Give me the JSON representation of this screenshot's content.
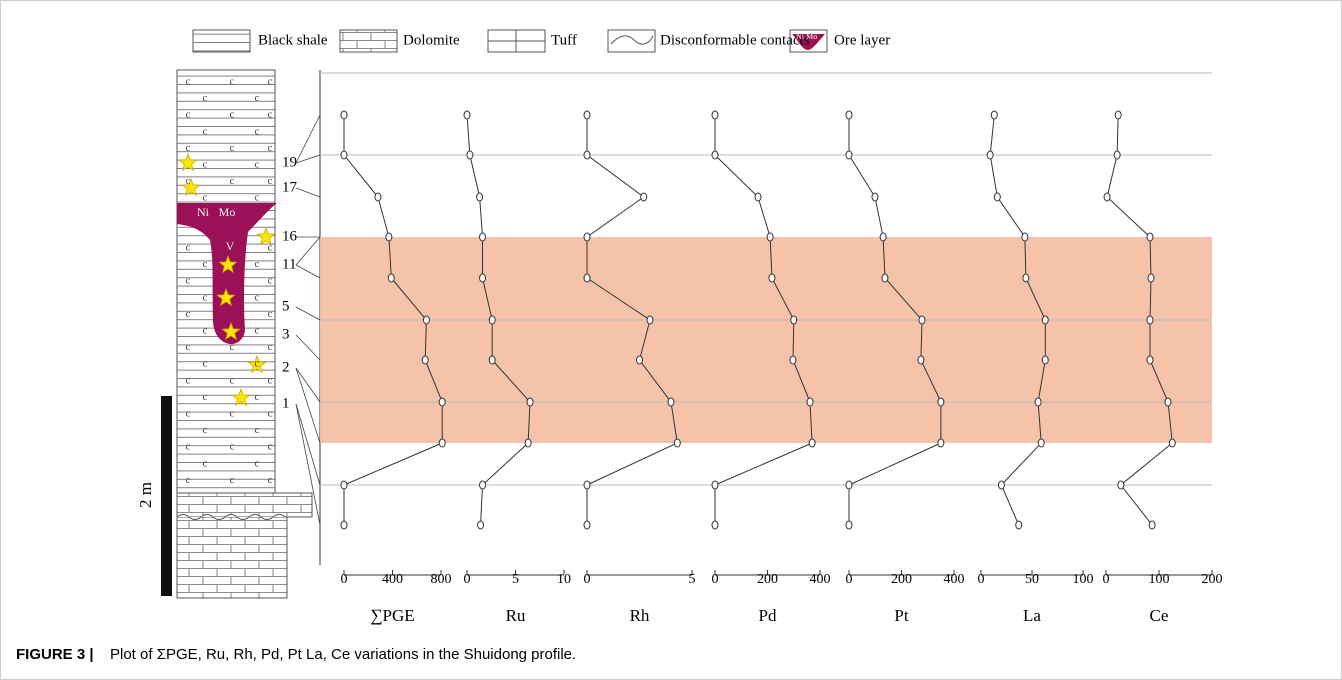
{
  "legend": {
    "items": [
      "Black shale",
      "Dolomite",
      "Tuff",
      "Disconformable contacts",
      "Ore layer"
    ],
    "ore_icon_text": "Ni Mo"
  },
  "column": {
    "shale_symbol": "c",
    "ore_elements": [
      "Ni",
      "Mo",
      "V"
    ],
    "sample_labels": [
      "19",
      "17",
      "16",
      "11",
      "5",
      "3",
      "2",
      "1"
    ],
    "scale_label": "2 m"
  },
  "chart_data": {
    "type": "line",
    "orientation": "vertical",
    "color": "#333333",
    "highlight_color": "#f4c0a4",
    "series": [
      {
        "name": "∑PGE",
        "values": [
          0,
          0,
          280,
          370,
          390,
          680,
          670,
          810,
          810,
          0,
          0
        ],
        "xlim": [
          0,
          800
        ],
        "xticks": [
          0,
          400,
          800
        ]
      },
      {
        "name": "Ru",
        "values": [
          0,
          0.3,
          1.3,
          1.6,
          1.6,
          2.6,
          2.6,
          6.5,
          6.3,
          1.6,
          1.4
        ],
        "xlim": [
          0,
          10
        ],
        "xticks": [
          0,
          5,
          10
        ]
      },
      {
        "name": "Rh",
        "values": [
          0,
          0,
          2.7,
          0,
          0,
          3.0,
          2.5,
          4.0,
          4.3,
          0,
          0
        ],
        "xlim": [
          0,
          5
        ],
        "xticks": [
          0,
          5
        ]
      },
      {
        "name": "Pd",
        "values": [
          0,
          0,
          164,
          210,
          217,
          300,
          297,
          362,
          370,
          0,
          0
        ],
        "xlim": [
          0,
          400
        ],
        "xticks": [
          0,
          200,
          400
        ]
      },
      {
        "name": "Pt",
        "values": [
          0,
          0,
          99,
          130,
          137,
          278,
          274,
          350,
          350,
          0,
          0
        ],
        "xlim": [
          0,
          400
        ],
        "xticks": [
          0,
          200,
          400
        ]
      },
      {
        "name": "La",
        "values": [
          13,
          9,
          16,
          43,
          44,
          63,
          63,
          56,
          59,
          20,
          37
        ],
        "xlim": [
          0,
          100
        ],
        "xticks": [
          0,
          50,
          100
        ]
      },
      {
        "name": "Ce",
        "values": [
          23,
          21,
          2,
          83,
          85,
          83,
          83,
          117,
          125,
          28,
          87
        ],
        "xlim": [
          0,
          200
        ],
        "xticks": [
          0,
          100,
          200
        ]
      }
    ]
  },
  "caption": {
    "label": "FIGURE 3 |",
    "text": "Plot of ΣPGE, Ru, Rh, Pd, Pt La, Ce variations in the Shuidong profile."
  }
}
